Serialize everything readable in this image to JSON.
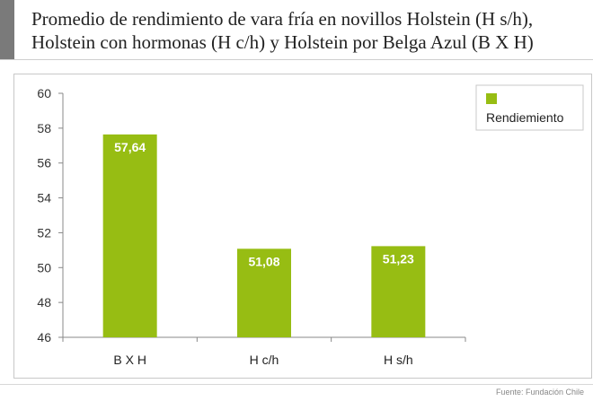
{
  "header": {
    "title_line1": "Promedio de rendimiento de vara fría en novillos Holstein (H s/h),",
    "title_line2": "Holstein con hormonas (H c/h) y Holstein por Belga Azul (B X H)"
  },
  "footer": {
    "source": "Fuente: Fundación Chile"
  },
  "colors": {
    "bar": "#97bd13",
    "axis": "#888888",
    "text": "#222222"
  },
  "chart_data": {
    "type": "bar",
    "categories": [
      "B X H",
      "H c/h",
      "H s/h"
    ],
    "series": [
      {
        "name": "Rendiemiento",
        "values": [
          57.64,
          51.08,
          51.23
        ]
      }
    ],
    "data_labels": [
      "57,64",
      "51,08",
      "51,23"
    ],
    "ylim": [
      46,
      60
    ],
    "yticks": [
      46,
      48,
      50,
      52,
      54,
      56,
      58,
      60
    ],
    "grid": false,
    "legend": {
      "position": "right",
      "entries": [
        "Rendiemiento"
      ]
    },
    "xlabel": "",
    "ylabel": ""
  }
}
